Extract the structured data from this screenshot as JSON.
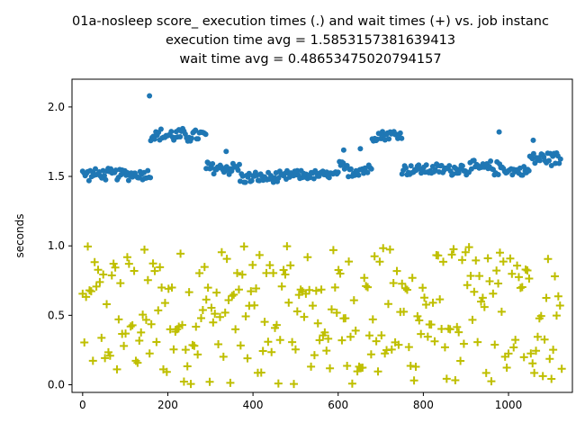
{
  "chart_data": {
    "type": "scatter",
    "title_lines": [
      "01a-nosleep score_ execution times (.) and wait times (+) vs. job instanc",
      "execution time avg = 1.5853157381639413",
      "wait time avg = 0.48653475020794157"
    ],
    "xlabel": "",
    "ylabel": "seconds",
    "xlim": [
      -25,
      1150
    ],
    "ylim": [
      -0.055,
      2.2
    ],
    "xticks": [
      0,
      200,
      400,
      600,
      800,
      1000
    ],
    "yticks": [
      0.0,
      0.5,
      1.0,
      1.5,
      2.0
    ],
    "ytick_labels": [
      "0.0",
      "0.5",
      "1.0",
      "1.5",
      "2.0"
    ],
    "grid": false,
    "colors": {
      "execution": "#1f77b4",
      "wait": "#bfbf00"
    },
    "series": [
      {
        "key": "execution",
        "marker": "dot",
        "segments": [
          {
            "x0": 0,
            "x1": 160,
            "base": 1.515,
            "spread": 0.05,
            "step": 3
          },
          {
            "x0": 160,
            "x1": 290,
            "base": 1.795,
            "spread": 0.06,
            "step": 3
          },
          {
            "x0": 290,
            "x1": 370,
            "base": 1.56,
            "spread": 0.06,
            "step": 3
          },
          {
            "x0": 370,
            "x1": 480,
            "base": 1.49,
            "spread": 0.05,
            "step": 3
          },
          {
            "x0": 480,
            "x1": 600,
            "base": 1.51,
            "spread": 0.04,
            "step": 3
          },
          {
            "x0": 600,
            "x1": 680,
            "base": 1.55,
            "spread": 0.07,
            "step": 3
          },
          {
            "x0": 680,
            "x1": 750,
            "base": 1.8,
            "spread": 0.05,
            "step": 3
          },
          {
            "x0": 750,
            "x1": 880,
            "base": 1.55,
            "spread": 0.05,
            "step": 3
          },
          {
            "x0": 880,
            "x1": 1000,
            "base": 1.56,
            "spread": 0.06,
            "step": 3
          },
          {
            "x0": 1000,
            "x1": 1050,
            "base": 1.54,
            "spread": 0.04,
            "step": 3
          },
          {
            "x0": 1050,
            "x1": 1125,
            "base": 1.63,
            "spread": 0.06,
            "step": 3
          }
        ],
        "extra_points": [
          {
            "x": 157,
            "y": 2.08
          },
          {
            "x": 978,
            "y": 1.82
          },
          {
            "x": 1058,
            "y": 1.76
          },
          {
            "x": 613,
            "y": 1.69
          },
          {
            "x": 652,
            "y": 1.7
          },
          {
            "x": 337,
            "y": 1.68
          }
        ]
      },
      {
        "key": "wait",
        "marker": "plus",
        "x_start": 0,
        "x_end": 1125,
        "count": 280,
        "y_min": 0.0,
        "y_max": 1.0
      }
    ]
  }
}
